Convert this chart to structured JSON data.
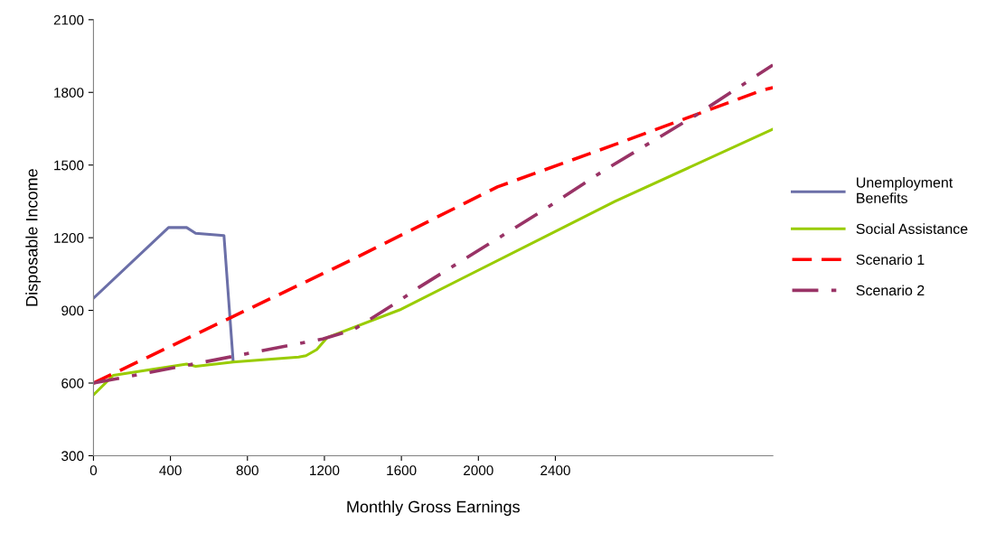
{
  "chart_data": {
    "type": "line",
    "xlabel": "Monthly Gross Earnings",
    "ylabel": "Disposable Income",
    "xlim": [
      0,
      3530
    ],
    "xticks": [
      0,
      400,
      800,
      1200,
      1600,
      2000,
      2400
    ],
    "ylim": [
      300,
      2100
    ],
    "yticks": [
      300,
      600,
      900,
      1200,
      1500,
      1800,
      2100
    ],
    "grid": false,
    "legend": "right",
    "series": [
      {
        "name": "Unemployment Benefits",
        "color": "#6b6fa8",
        "line_style": "solid",
        "x": [
          0,
          390,
          484,
          531,
          678,
          726
        ],
        "values": [
          950,
          1242,
          1242,
          1218,
          1209,
          688
        ]
      },
      {
        "name": "Social Assistance",
        "color": "#99cc00",
        "line_style": "solid",
        "x": [
          0,
          103,
          484,
          531,
          726,
          1066,
          1104,
          1160,
          1215,
          1591,
          2710,
          3530
        ],
        "values": [
          551,
          632,
          678,
          669,
          687,
          707,
          713,
          738,
          788,
          902,
          1350,
          1648
        ]
      },
      {
        "name": "Scenario 1",
        "color": "#ff0000",
        "line_style": "dashed",
        "x": [
          0,
          1348,
          2099,
          2710,
          3475,
          3530
        ],
        "values": [
          600,
          1111,
          1410,
          1585,
          1809,
          1820
        ]
      },
      {
        "name": "Scenario 2",
        "color": "#993366",
        "line_style": "dashdot",
        "x": [
          0,
          94,
          517,
          1191,
          1348,
          1573,
          1691,
          2320,
          2663,
          3133,
          3530
        ],
        "values": [
          600,
          614,
          678,
          782,
          819,
          931,
          995,
          1305,
          1483,
          1707,
          1913
        ]
      }
    ]
  }
}
